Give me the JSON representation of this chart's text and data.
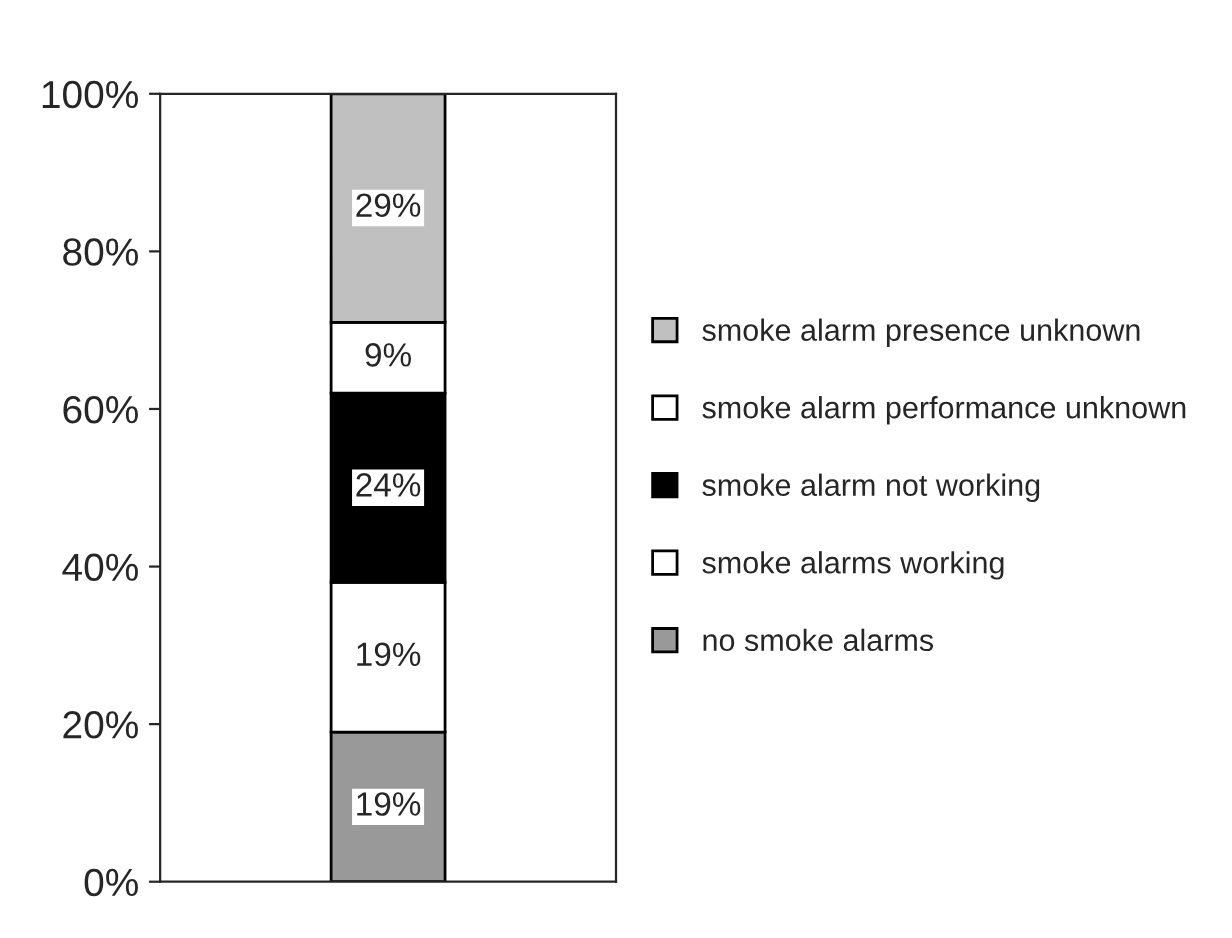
{
  "chart_data": {
    "type": "bar",
    "stacked": true,
    "categories": [
      null
    ],
    "series": [
      {
        "name": "no smoke alarms",
        "color": "#999999",
        "values": [
          19
        ],
        "value_labels": [
          "19%"
        ]
      },
      {
        "name": "smoke alarms working",
        "color": "#ffffff",
        "values": [
          19
        ],
        "value_labels": [
          "19%"
        ]
      },
      {
        "name": "smoke alarm not working",
        "color": "#000000",
        "values": [
          24
        ],
        "value_labels": [
          "24%"
        ]
      },
      {
        "name": "smoke alarm performance unknown",
        "color": "#ffffff",
        "values": [
          9
        ],
        "value_labels": [
          "9%"
        ]
      },
      {
        "name": "smoke alarm presence unknown",
        "color": "#c0c0c0",
        "values": [
          29
        ],
        "value_labels": [
          "29%"
        ]
      }
    ],
    "ylim": [
      0,
      100
    ],
    "yticks": [
      {
        "value": 0,
        "label": "0%"
      },
      {
        "value": 20,
        "label": "20%"
      },
      {
        "value": 40,
        "label": "40%"
      },
      {
        "value": 60,
        "label": "60%"
      },
      {
        "value": 80,
        "label": "80%"
      },
      {
        "value": 100,
        "label": "100%"
      }
    ],
    "grid": false,
    "legend": "right"
  }
}
